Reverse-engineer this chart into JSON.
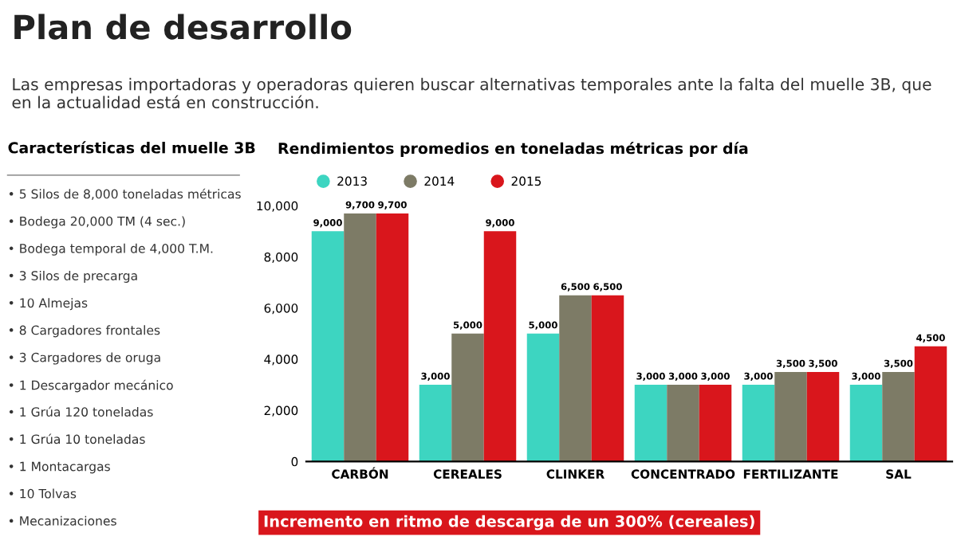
{
  "chart_data": [
    {
      "type": "other",
      "title": "Plan de desarrollo",
      "subtitle": "Las empresas importadoras y operadoras quieren buscar alternativas temporales ante la falta del muelle 3B, que en la actualidad está en construcción."
    },
    {
      "type": "other",
      "title": "Características del muelle 3B",
      "annotations": [
        "• 5 Silos de 8,000 toneladas métricas",
        "• Bodega 20,000 TM (4 sec.)",
        "• Bodega temporal de 4,000 T.M.",
        "• 3 Silos de precarga",
        "• 10 Almejas",
        "• 8 Cargadores frontales",
        "• 3 Cargadores de oruga",
        "• 1 Descargador mecánico",
        "• 1 Grúa 120 toneladas",
        "• 1 Grúa 10 toneladas",
        "• 1 Montacargas",
        "• 10 Tolvas",
        "• Mecanizaciones"
      ]
    },
    {
      "type": "bar",
      "title": "Rendimientos promedios en toneladas métricas por día",
      "categories": [
        "CARBÓN",
        "CEREALES",
        "CLINKER",
        "CONCENTRADO",
        "FERTILIZANTE",
        "SAL"
      ],
      "series": [
        {
          "name": "2013",
          "color": "#3dd5c1",
          "values": [
            9000,
            3000,
            5000,
            3000,
            3000,
            3000
          ],
          "value_labels": [
            "9,000",
            "3,000",
            "5,000",
            "3,000",
            "3,000",
            "3,000"
          ]
        },
        {
          "name": "2014",
          "color": "#7d7b66",
          "values": [
            9700,
            5000,
            6500,
            3000,
            3500,
            3500
          ],
          "value_labels": [
            "9,700",
            "5,000",
            "6,500",
            "3,000",
            "3,500",
            "3,500"
          ]
        },
        {
          "name": "2015",
          "color": "#d9161c",
          "values": [
            9700,
            9000,
            6500,
            3000,
            3500,
            4500
          ],
          "value_labels": [
            "9,700",
            "9,000",
            "6,500",
            "3,000",
            "3,500",
            "4,500"
          ]
        }
      ],
      "ylim": [
        0,
        10000
      ],
      "yticks": [
        0,
        {
          "value": 2000,
          "label": "2,000"
        },
        {
          "value": 4000,
          "label": "4,000"
        },
        {
          "value": 6000,
          "label": "6,000"
        },
        {
          "value": 8000,
          "label": "8,000"
        },
        {
          "value": 10000,
          "label": "10,000"
        }
      ],
      "legend": "top left",
      "grid": false,
      "annotations": [
        "Incremento en ritmo de descarga de un 300% (cereales)"
      ]
    }
  ]
}
